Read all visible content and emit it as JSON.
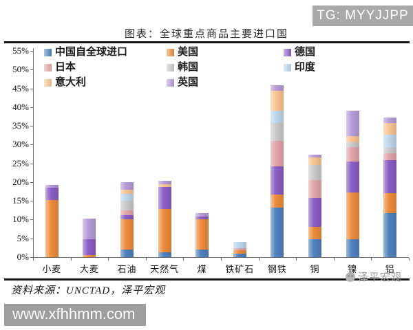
{
  "badges": {
    "tg": "TG: MYYJJPP"
  },
  "title": "图表：全球重点商品主要进口国",
  "footer": {
    "source": "资料来源：UNCTAD，泽平宏观",
    "watermark": "泽平宏观",
    "url": "www.xfhhmm.com"
  },
  "chart_data": {
    "type": "bar",
    "stacked": true,
    "title": "图表：全球重点商品主要进口国",
    "unit": "%",
    "ylim": [
      0,
      55
    ],
    "ytick_step": 5,
    "ytick_labels": [
      "0%",
      "5%",
      "10%",
      "15%",
      "20%",
      "25%",
      "30%",
      "35%",
      "40%",
      "45%",
      "50%",
      "55%"
    ],
    "gridlines": false,
    "legend_position": "top-left-inside",
    "categories": [
      "小麦",
      "大麦",
      "石油",
      "天然气",
      "煤",
      "铁矿石",
      "钢铁",
      "铜",
      "镍",
      "铝"
    ],
    "series": [
      {
        "name": "中国自全球进口",
        "color": "#4f81bd",
        "values": [
          0,
          0,
          2.1,
          1.2,
          2.0,
          0.9,
          13.2,
          4.8,
          4.7,
          11.7
        ]
      },
      {
        "name": "美国",
        "color": "#ee8c3c",
        "values": [
          15.2,
          0.5,
          8.0,
          11.7,
          8.0,
          0.9,
          3.4,
          3.2,
          12.5,
          5.3
        ]
      },
      {
        "name": "德国",
        "color": "#8a5ec5",
        "values": [
          3.4,
          4.3,
          1.1,
          5.8,
          0.8,
          0,
          7.6,
          7.7,
          8.3,
          8.8
        ]
      },
      {
        "name": "日本",
        "color": "#e2a5a8",
        "values": [
          0,
          0,
          1.2,
          0,
          0,
          0.6,
          6.7,
          4.9,
          3.9,
          1.9
        ]
      },
      {
        "name": "韩国",
        "color": "#c9c9c9",
        "values": [
          0,
          0,
          2.7,
          0,
          0,
          0,
          4.9,
          4.0,
          1.2,
          1.5
        ]
      },
      {
        "name": "印度",
        "color": "#bdd7ec",
        "values": [
          0,
          0,
          1.8,
          0,
          0,
          1.6,
          3.3,
          0,
          0,
          3.4
        ]
      },
      {
        "name": "意大利",
        "color": "#f9c493",
        "values": [
          0,
          0,
          1.0,
          0.7,
          0,
          0,
          5.2,
          2.0,
          1.7,
          3.1
        ]
      },
      {
        "name": "英国",
        "color": "#b89bd9",
        "values": [
          0.7,
          5.5,
          2.1,
          0.9,
          1.0,
          0,
          1.5,
          0.7,
          6.7,
          1.5
        ]
      }
    ]
  }
}
